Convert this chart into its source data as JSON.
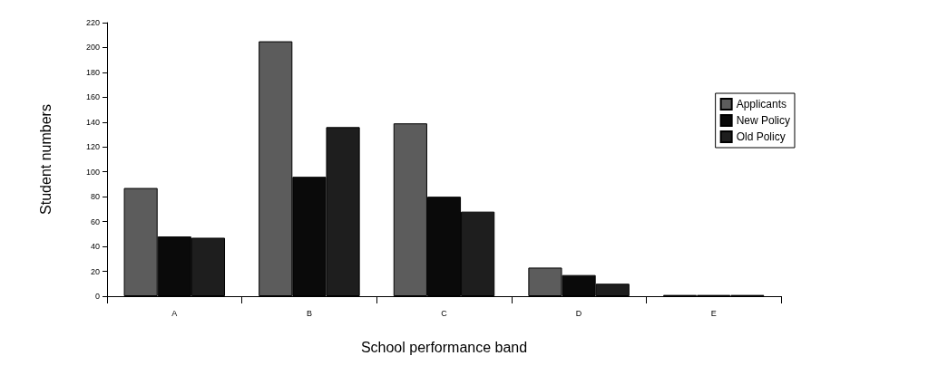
{
  "chart_data": {
    "type": "bar",
    "xlabel": "School performance band",
    "ylabel": "Student numbers",
    "categories": [
      "A",
      "B",
      "C",
      "D",
      "E"
    ],
    "series": [
      {
        "name": "Applicants",
        "color": "#5c5c5c",
        "values": [
          87,
          205,
          139,
          23,
          1
        ]
      },
      {
        "name": "New Policy",
        "color": "#0a0a0a",
        "values": [
          48,
          96,
          80,
          17,
          1
        ]
      },
      {
        "name": "Old Policy",
        "color": "#1e1e1e",
        "values": [
          47,
          136,
          68,
          10,
          1
        ]
      }
    ],
    "ylim": [
      0,
      220
    ],
    "yticks": [
      0,
      20,
      40,
      60,
      80,
      100,
      120,
      140,
      160,
      180,
      200,
      220
    ],
    "grid": false,
    "legend": "top right"
  }
}
